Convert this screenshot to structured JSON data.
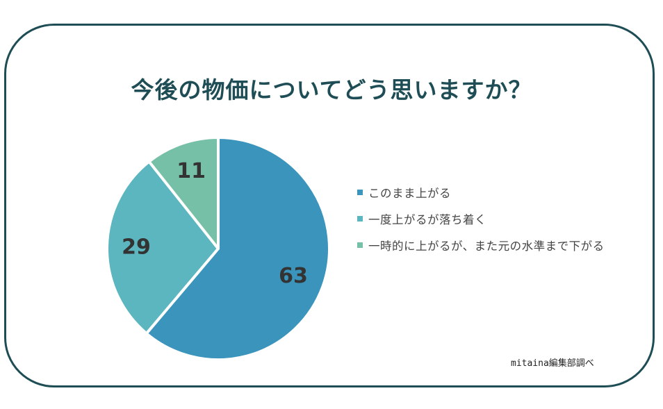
{
  "chart_data": {
    "type": "pie",
    "title": "今後の物価についてどう思いますか？",
    "slices": [
      {
        "label": "このまま上がる",
        "value": 63,
        "color": "#3a94bb"
      },
      {
        "label": "一度上がるが落ち着く",
        "value": 29,
        "color": "#5bb6c0"
      },
      {
        "label": "一時的に上がるが、また元の水準まで下がる",
        "value": 11,
        "color": "#76c0a8"
      }
    ],
    "legend_position": "right",
    "source_note": "mitaina編集部調べ"
  },
  "colors": {
    "frame": "#1e4d55",
    "title": "#1e4d55",
    "label_text": "#333333"
  }
}
